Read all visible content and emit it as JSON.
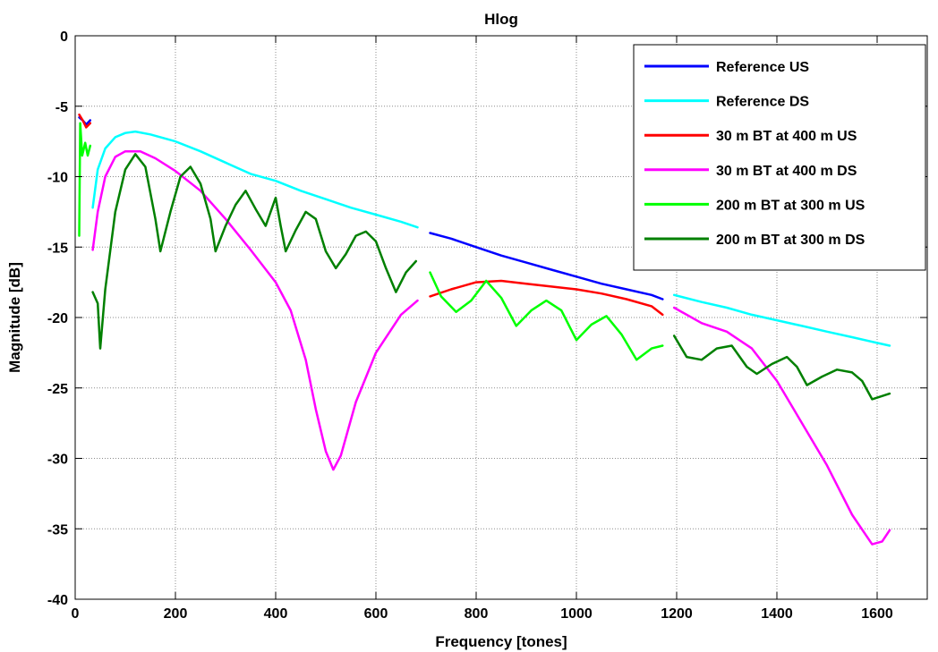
{
  "chart_data": {
    "type": "line",
    "title": "Hlog",
    "xlabel": "Frequency [tones]",
    "ylabel": "Magnitude [dB]",
    "xlim": [
      0,
      1700
    ],
    "ylim": [
      -40,
      0
    ],
    "xticks": [
      0,
      200,
      400,
      600,
      800,
      1000,
      1200,
      1400,
      1600
    ],
    "yticks": [
      0,
      -5,
      -10,
      -15,
      -20,
      -25,
      -30,
      -35,
      -40
    ],
    "grid": true,
    "legend_position": "top-right",
    "series": [
      {
        "name": "Reference US",
        "color": "#0000ff",
        "segments": [
          [
            [
              8,
              -5.8
            ],
            [
              15,
              -6.0
            ],
            [
              22,
              -6.3
            ],
            [
              30,
              -6.0
            ]
          ],
          [
            [
              708,
              -14.0
            ],
            [
              750,
              -14.4
            ],
            [
              800,
              -15.0
            ],
            [
              850,
              -15.6
            ],
            [
              900,
              -16.1
            ],
            [
              950,
              -16.6
            ],
            [
              1000,
              -17.1
            ],
            [
              1050,
              -17.6
            ],
            [
              1100,
              -18.0
            ],
            [
              1150,
              -18.4
            ],
            [
              1172,
              -18.7
            ]
          ]
        ]
      },
      {
        "name": "Reference DS",
        "color": "#00ffff",
        "segments": [
          [
            [
              35,
              -12.2
            ],
            [
              45,
              -9.5
            ],
            [
              60,
              -8.0
            ],
            [
              80,
              -7.2
            ],
            [
              100,
              -6.9
            ],
            [
              120,
              -6.8
            ],
            [
              150,
              -7.0
            ],
            [
              200,
              -7.5
            ],
            [
              250,
              -8.2
            ],
            [
              300,
              -9.0
            ],
            [
              350,
              -9.8
            ],
            [
              400,
              -10.3
            ],
            [
              450,
              -11.0
            ],
            [
              500,
              -11.6
            ],
            [
              550,
              -12.2
            ],
            [
              600,
              -12.7
            ],
            [
              650,
              -13.2
            ],
            [
              683,
              -13.6
            ]
          ],
          [
            [
              1195,
              -18.4
            ],
            [
              1250,
              -18.9
            ],
            [
              1300,
              -19.3
            ],
            [
              1350,
              -19.8
            ],
            [
              1400,
              -20.2
            ],
            [
              1450,
              -20.6
            ],
            [
              1500,
              -21.0
            ],
            [
              1550,
              -21.4
            ],
            [
              1600,
              -21.8
            ],
            [
              1625,
              -22.0
            ]
          ]
        ]
      },
      {
        "name": "30 m BT at 400 m US",
        "color": "#ff0000",
        "segments": [
          [
            [
              8,
              -5.6
            ],
            [
              15,
              -6.0
            ],
            [
              22,
              -6.5
            ],
            [
              30,
              -6.2
            ]
          ],
          [
            [
              708,
              -18.5
            ],
            [
              750,
              -18.0
            ],
            [
              800,
              -17.5
            ],
            [
              850,
              -17.4
            ],
            [
              900,
              -17.6
            ],
            [
              950,
              -17.8
            ],
            [
              1000,
              -18.0
            ],
            [
              1050,
              -18.3
            ],
            [
              1100,
              -18.7
            ],
            [
              1150,
              -19.2
            ],
            [
              1172,
              -19.8
            ]
          ]
        ]
      },
      {
        "name": "30 m BT at 400 m DS",
        "color": "#ff00ff",
        "segments": [
          [
            [
              35,
              -15.2
            ],
            [
              45,
              -12.5
            ],
            [
              60,
              -10.0
            ],
            [
              80,
              -8.6
            ],
            [
              100,
              -8.2
            ],
            [
              130,
              -8.2
            ],
            [
              160,
              -8.7
            ],
            [
              200,
              -9.6
            ],
            [
              250,
              -11.0
            ],
            [
              300,
              -13.0
            ],
            [
              350,
              -15.2
            ],
            [
              400,
              -17.5
            ],
            [
              430,
              -19.5
            ],
            [
              460,
              -23.0
            ],
            [
              480,
              -26.5
            ],
            [
              500,
              -29.5
            ],
            [
              515,
              -30.8
            ],
            [
              530,
              -29.8
            ],
            [
              560,
              -26.0
            ],
            [
              600,
              -22.5
            ],
            [
              650,
              -19.8
            ],
            [
              683,
              -18.8
            ]
          ],
          [
            [
              1195,
              -19.3
            ],
            [
              1250,
              -20.4
            ],
            [
              1300,
              -21.0
            ],
            [
              1350,
              -22.2
            ],
            [
              1400,
              -24.5
            ],
            [
              1450,
              -27.5
            ],
            [
              1500,
              -30.5
            ],
            [
              1550,
              -34.0
            ],
            [
              1590,
              -36.1
            ],
            [
              1610,
              -35.9
            ],
            [
              1625,
              -35.1
            ]
          ]
        ]
      },
      {
        "name": "200 m BT at 300 m US",
        "color": "#00ff00",
        "segments": [
          [
            [
              8,
              -14.2
            ],
            [
              10,
              -6.2
            ],
            [
              14,
              -8.5
            ],
            [
              20,
              -7.6
            ],
            [
              25,
              -8.5
            ],
            [
              30,
              -7.8
            ]
          ],
          [
            [
              708,
              -16.8
            ],
            [
              730,
              -18.5
            ],
            [
              760,
              -19.6
            ],
            [
              790,
              -18.8
            ],
            [
              820,
              -17.4
            ],
            [
              850,
              -18.6
            ],
            [
              880,
              -20.6
            ],
            [
              910,
              -19.5
            ],
            [
              940,
              -18.8
            ],
            [
              970,
              -19.5
            ],
            [
              1000,
              -21.6
            ],
            [
              1030,
              -20.5
            ],
            [
              1060,
              -19.9
            ],
            [
              1090,
              -21.2
            ],
            [
              1120,
              -23.0
            ],
            [
              1150,
              -22.2
            ],
            [
              1172,
              -22.0
            ]
          ]
        ]
      },
      {
        "name": "200 m BT at 300 m DS",
        "color": "#008000",
        "segments": [
          [
            [
              35,
              -18.2
            ],
            [
              45,
              -19.0
            ],
            [
              50,
              -22.2
            ],
            [
              60,
              -18.0
            ],
            [
              80,
              -12.5
            ],
            [
              100,
              -9.5
            ],
            [
              120,
              -8.4
            ],
            [
              140,
              -9.3
            ],
            [
              160,
              -13.0
            ],
            [
              170,
              -15.3
            ],
            [
              190,
              -12.5
            ],
            [
              210,
              -10.0
            ],
            [
              230,
              -9.3
            ],
            [
              250,
              -10.5
            ],
            [
              270,
              -13.0
            ],
            [
              280,
              -15.3
            ],
            [
              300,
              -13.5
            ],
            [
              320,
              -12.0
            ],
            [
              340,
              -11.0
            ],
            [
              360,
              -12.3
            ],
            [
              380,
              -13.5
            ],
            [
              400,
              -11.5
            ],
            [
              410,
              -13.5
            ],
            [
              420,
              -15.3
            ],
            [
              440,
              -13.8
            ],
            [
              460,
              -12.5
            ],
            [
              480,
              -13.0
            ],
            [
              500,
              -15.3
            ],
            [
              520,
              -16.5
            ],
            [
              540,
              -15.5
            ],
            [
              560,
              -14.2
            ],
            [
              580,
              -13.9
            ],
            [
              600,
              -14.6
            ],
            [
              620,
              -16.5
            ],
            [
              640,
              -18.2
            ],
            [
              660,
              -16.8
            ],
            [
              680,
              -16.0
            ]
          ],
          [
            [
              1195,
              -21.3
            ],
            [
              1220,
              -22.8
            ],
            [
              1250,
              -23.0
            ],
            [
              1280,
              -22.2
            ],
            [
              1310,
              -22.0
            ],
            [
              1340,
              -23.5
            ],
            [
              1360,
              -24.0
            ],
            [
              1390,
              -23.3
            ],
            [
              1420,
              -22.8
            ],
            [
              1440,
              -23.5
            ],
            [
              1460,
              -24.8
            ],
            [
              1490,
              -24.2
            ],
            [
              1520,
              -23.7
            ],
            [
              1550,
              -23.9
            ],
            [
              1570,
              -24.5
            ],
            [
              1590,
              -25.8
            ],
            [
              1625,
              -25.4
            ]
          ]
        ]
      }
    ]
  }
}
